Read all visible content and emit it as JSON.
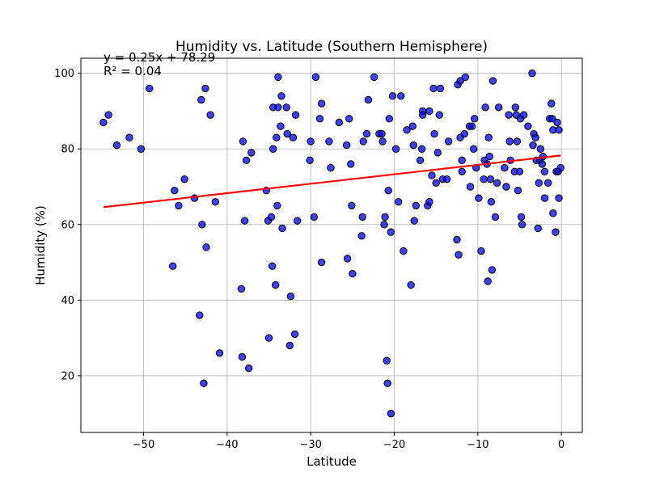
{
  "chart_data": {
    "type": "scatter",
    "title": "Humidity vs. Latitude (Southern Hemisphere)",
    "xlabel": "Latitude",
    "ylabel": "Humidity (%)",
    "xlim": [
      -57.5,
      2.5
    ],
    "ylim": [
      5,
      104
    ],
    "xticks": [
      -50,
      -40,
      -30,
      -20,
      -10,
      0
    ],
    "yticks": [
      20,
      40,
      60,
      80,
      100
    ],
    "grid": true,
    "marker_color": "#0000ff",
    "marker_edge_color": "#000000",
    "line_color": "#ff0000",
    "regression": {
      "slope": 0.25,
      "intercept": 78.29,
      "x_range": [
        -54.8,
        -0.1
      ],
      "equation": "y = 0.25x + 78.29",
      "r_squared": "R² = 0.04"
    },
    "points": [
      [
        -54.8,
        87
      ],
      [
        -54.2,
        89
      ],
      [
        -53.2,
        81
      ],
      [
        -51.7,
        83
      ],
      [
        -50.3,
        80
      ],
      [
        -49.3,
        96
      ],
      [
        -46.5,
        49
      ],
      [
        -46.3,
        69
      ],
      [
        -45.8,
        65
      ],
      [
        -45.1,
        72
      ],
      [
        -43.9,
        67
      ],
      [
        -43.3,
        36
      ],
      [
        -43.1,
        93
      ],
      [
        -43.0,
        60
      ],
      [
        -42.8,
        18
      ],
      [
        -42.6,
        96
      ],
      [
        -42.5,
        54
      ],
      [
        -42.0,
        89
      ],
      [
        -41.4,
        66
      ],
      [
        -40.9,
        26
      ],
      [
        -38.3,
        43
      ],
      [
        -38.2,
        25
      ],
      [
        -38.1,
        82
      ],
      [
        -37.9,
        61
      ],
      [
        -37.7,
        77
      ],
      [
        -37.4,
        22
      ],
      [
        -37.1,
        79
      ],
      [
        -35.3,
        69
      ],
      [
        -35.1,
        61
      ],
      [
        -35.0,
        30
      ],
      [
        -34.7,
        62
      ],
      [
        -34.6,
        49
      ],
      [
        -34.5,
        80
      ],
      [
        -34.5,
        91
      ],
      [
        -34.2,
        44
      ],
      [
        -34.1,
        83
      ],
      [
        -34.0,
        65
      ],
      [
        -33.9,
        99
      ],
      [
        -33.9,
        91
      ],
      [
        -33.6,
        86
      ],
      [
        -33.5,
        94
      ],
      [
        -33.4,
        59
      ],
      [
        -32.9,
        91
      ],
      [
        -32.8,
        84
      ],
      [
        -32.5,
        28
      ],
      [
        -32.4,
        41
      ],
      [
        -32.1,
        83
      ],
      [
        -31.9,
        31
      ],
      [
        -31.8,
        89
      ],
      [
        -31.6,
        61
      ],
      [
        -30.1,
        77
      ],
      [
        -30.0,
        82
      ],
      [
        -29.6,
        62
      ],
      [
        -29.4,
        99
      ],
      [
        -28.9,
        88
      ],
      [
        -28.7,
        92
      ],
      [
        -28.7,
        50
      ],
      [
        -27.8,
        82
      ],
      [
        -27.6,
        75
      ],
      [
        -26.6,
        87
      ],
      [
        -25.7,
        81
      ],
      [
        -25.6,
        51
      ],
      [
        -25.4,
        88
      ],
      [
        -25.2,
        76
      ],
      [
        -25.1,
        65
      ],
      [
        -25.0,
        47
      ],
      [
        -23.9,
        57
      ],
      [
        -23.8,
        62
      ],
      [
        -23.7,
        82
      ],
      [
        -23.3,
        84
      ],
      [
        -23.1,
        93
      ],
      [
        -22.4,
        99
      ],
      [
        -21.8,
        84
      ],
      [
        -21.5,
        84
      ],
      [
        -21.4,
        82
      ],
      [
        -21.2,
        60
      ],
      [
        -21.1,
        62
      ],
      [
        -20.9,
        24
      ],
      [
        -20.8,
        18
      ],
      [
        -20.7,
        69
      ],
      [
        -20.6,
        88
      ],
      [
        -20.4,
        58
      ],
      [
        -20.4,
        10
      ],
      [
        -20.2,
        94
      ],
      [
        -19.8,
        80
      ],
      [
        -19.5,
        66
      ],
      [
        -19.2,
        94
      ],
      [
        -18.9,
        53
      ],
      [
        -18.5,
        85
      ],
      [
        -18.0,
        44
      ],
      [
        -17.8,
        86
      ],
      [
        -17.7,
        81
      ],
      [
        -17.6,
        61
      ],
      [
        -17.4,
        65
      ],
      [
        -16.9,
        77
      ],
      [
        -16.7,
        80
      ],
      [
        -16.6,
        90
      ],
      [
        -16.6,
        89
      ],
      [
        -16.0,
        65
      ],
      [
        -15.8,
        66
      ],
      [
        -15.8,
        90
      ],
      [
        -15.5,
        73
      ],
      [
        -15.3,
        96
      ],
      [
        -15.2,
        84
      ],
      [
        -15.0,
        71
      ],
      [
        -14.8,
        79
      ],
      [
        -14.6,
        89
      ],
      [
        -14.5,
        96
      ],
      [
        -14.2,
        72
      ],
      [
        -13.7,
        72
      ],
      [
        -13.5,
        82
      ],
      [
        -12.5,
        56
      ],
      [
        -12.4,
        97
      ],
      [
        -12.3,
        52
      ],
      [
        -12.1,
        83
      ],
      [
        -12.1,
        98
      ],
      [
        -11.9,
        74
      ],
      [
        -11.9,
        77
      ],
      [
        -11.6,
        84
      ],
      [
        -11.5,
        99
      ],
      [
        -11.0,
        86
      ],
      [
        -10.9,
        70
      ],
      [
        -10.7,
        86
      ],
      [
        -10.5,
        80
      ],
      [
        -10.4,
        88
      ],
      [
        -10.2,
        75
      ],
      [
        -9.9,
        67
      ],
      [
        -9.6,
        53
      ],
      [
        -9.3,
        72
      ],
      [
        -9.2,
        77
      ],
      [
        -9.1,
        91
      ],
      [
        -8.9,
        76
      ],
      [
        -8.8,
        45
      ],
      [
        -8.7,
        83
      ],
      [
        -8.6,
        78
      ],
      [
        -8.5,
        72
      ],
      [
        -8.4,
        66
      ],
      [
        -8.3,
        48
      ],
      [
        -8.2,
        98
      ],
      [
        -7.9,
        62
      ],
      [
        -7.7,
        71
      ],
      [
        -7.5,
        91
      ],
      [
        -6.8,
        75
      ],
      [
        -6.6,
        70
      ],
      [
        -6.3,
        89
      ],
      [
        -6.2,
        82
      ],
      [
        -6.1,
        77
      ],
      [
        -5.6,
        74
      ],
      [
        -5.5,
        91
      ],
      [
        -5.4,
        89
      ],
      [
        -5.3,
        82
      ],
      [
        -5.2,
        69
      ],
      [
        -5.0,
        74
      ],
      [
        -4.9,
        88
      ],
      [
        -4.8,
        62
      ],
      [
        -4.7,
        60
      ],
      [
        -4.5,
        89
      ],
      [
        -4.0,
        86
      ],
      [
        -3.5,
        100
      ],
      [
        -3.4,
        81
      ],
      [
        -3.3,
        84
      ],
      [
        -3.1,
        83
      ],
      [
        -3.0,
        77
      ],
      [
        -2.8,
        59
      ],
      [
        -2.7,
        71
      ],
      [
        -2.6,
        77
      ],
      [
        -2.5,
        80
      ],
      [
        -2.3,
        76
      ],
      [
        -2.2,
        78
      ],
      [
        -2.0,
        74
      ],
      [
        -2.0,
        67
      ],
      [
        -1.6,
        71
      ],
      [
        -1.4,
        88
      ],
      [
        -1.2,
        92
      ],
      [
        -1.1,
        88
      ],
      [
        -1.0,
        85
      ],
      [
        -1.0,
        63
      ],
      [
        -0.7,
        58
      ],
      [
        -0.6,
        74
      ],
      [
        -0.5,
        87
      ],
      [
        -0.4,
        74
      ],
      [
        -0.3,
        85
      ],
      [
        -0.3,
        67
      ],
      [
        -0.1,
        75
      ]
    ]
  }
}
